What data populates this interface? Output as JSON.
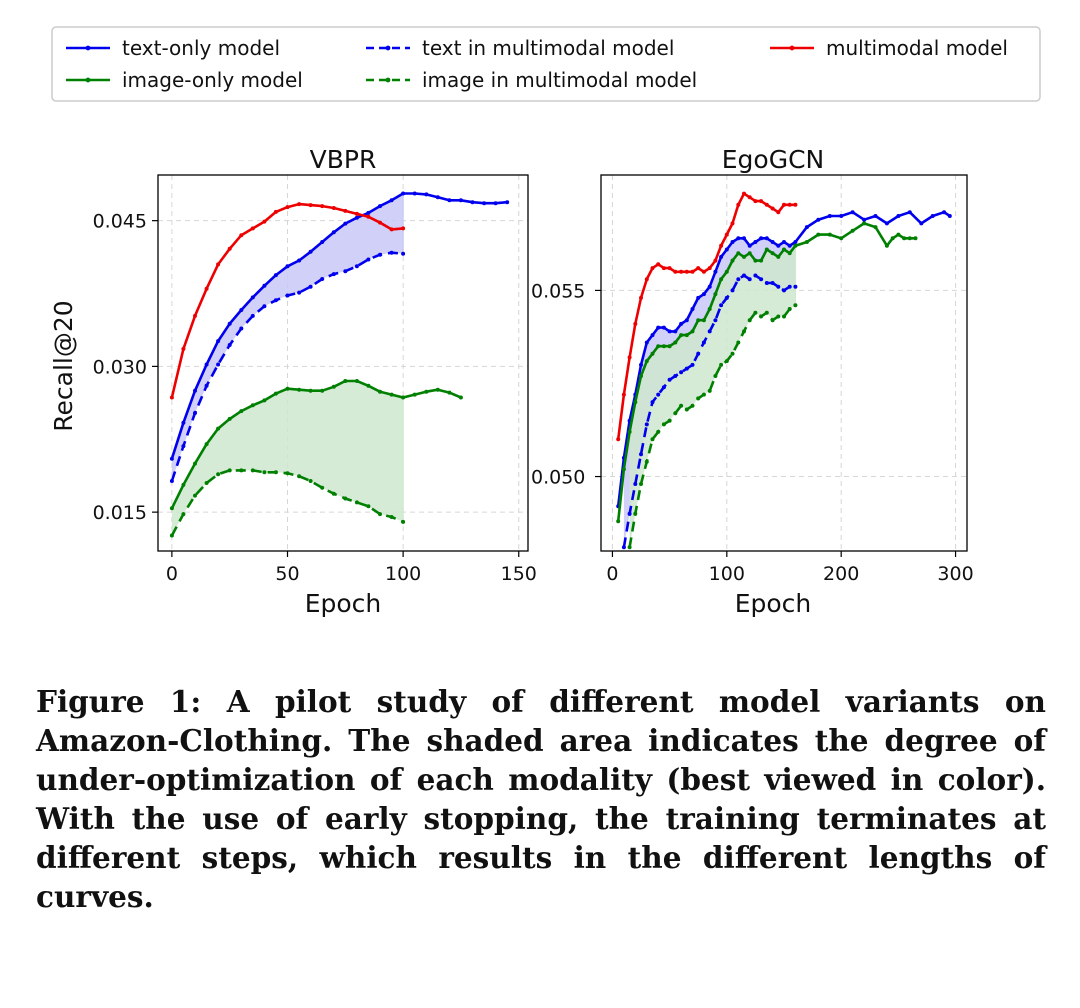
{
  "legend": {
    "entries": [
      {
        "label": "text-only model",
        "color": "#0000ee",
        "dash": false
      },
      {
        "label": "image-only model",
        "color": "#008000",
        "dash": false
      },
      {
        "label": "text in multimodal model",
        "color": "#0000ee",
        "dash": true
      },
      {
        "label": "image in multimodal model",
        "color": "#008000",
        "dash": true
      },
      {
        "label": "multimodal model",
        "color": "#ee0000",
        "dash": false
      }
    ]
  },
  "colors": {
    "text": "#0000ee",
    "image": "#008000",
    "multimodal": "#ee0000",
    "text_fill": "#c8c8f8",
    "image_fill": "#cfe8cf"
  },
  "chart_data": [
    {
      "type": "line",
      "title": "VBPR",
      "xlabel": "Epoch",
      "ylabel": "Recall@20",
      "xlim": [
        -6,
        154
      ],
      "ylim": [
        0.011,
        0.0497
      ],
      "xticks": [
        0,
        50,
        100,
        150
      ],
      "yticks": [
        0.015,
        0.03,
        0.045
      ],
      "ytick_labels": [
        "0.015",
        "0.030",
        "0.045"
      ],
      "grid": true,
      "shaded": [
        {
          "between": [
            "text-only model",
            "text in multimodal model"
          ],
          "until": 100,
          "color": "#c8c8f8"
        },
        {
          "between": [
            "image-only model",
            "image in multimodal model"
          ],
          "until": 100,
          "color": "#cfe8cf"
        }
      ],
      "series": [
        {
          "name": "text-only model",
          "color": "#0000ee",
          "dash": false,
          "x": [
            0,
            5,
            10,
            15,
            20,
            25,
            30,
            35,
            40,
            45,
            50,
            55,
            60,
            65,
            70,
            75,
            80,
            85,
            90,
            95,
            100,
            105,
            110,
            115,
            120,
            125,
            130,
            135,
            140,
            145
          ],
          "y": [
            0.0205,
            0.0242,
            0.0275,
            0.0302,
            0.0326,
            0.0344,
            0.0358,
            0.0371,
            0.0383,
            0.0394,
            0.0403,
            0.0409,
            0.0418,
            0.0428,
            0.0438,
            0.0447,
            0.0453,
            0.0458,
            0.0465,
            0.0471,
            0.0478,
            0.0478,
            0.0477,
            0.0474,
            0.0471,
            0.0471,
            0.0469,
            0.0468,
            0.0468,
            0.0469
          ]
        },
        {
          "name": "text in multimodal model",
          "color": "#0000ee",
          "dash": true,
          "x": [
            0,
            5,
            10,
            15,
            20,
            25,
            30,
            35,
            40,
            45,
            50,
            55,
            60,
            65,
            70,
            75,
            80,
            85,
            90,
            95,
            100
          ],
          "y": [
            0.0182,
            0.0218,
            0.0252,
            0.028,
            0.0302,
            0.0322,
            0.0339,
            0.0352,
            0.0362,
            0.0368,
            0.0373,
            0.0376,
            0.0382,
            0.039,
            0.0395,
            0.0398,
            0.0403,
            0.041,
            0.0415,
            0.0417,
            0.0416
          ]
        },
        {
          "name": "image-only model",
          "color": "#008000",
          "dash": false,
          "x": [
            0,
            5,
            10,
            15,
            20,
            25,
            30,
            35,
            40,
            45,
            50,
            55,
            60,
            65,
            70,
            75,
            80,
            85,
            90,
            95,
            100,
            105,
            110,
            115,
            120,
            125
          ],
          "y": [
            0.0154,
            0.0178,
            0.02,
            0.022,
            0.0236,
            0.0246,
            0.0254,
            0.026,
            0.0265,
            0.0272,
            0.0277,
            0.0276,
            0.0275,
            0.0275,
            0.0279,
            0.0285,
            0.0285,
            0.028,
            0.0274,
            0.0271,
            0.0268,
            0.0271,
            0.0274,
            0.0276,
            0.0273,
            0.0268
          ]
        },
        {
          "name": "image in multimodal model",
          "color": "#008000",
          "dash": true,
          "x": [
            0,
            5,
            10,
            15,
            20,
            25,
            30,
            35,
            40,
            45,
            50,
            55,
            60,
            65,
            70,
            75,
            80,
            85,
            90,
            95,
            100
          ],
          "y": [
            0.0126,
            0.0148,
            0.0167,
            0.018,
            0.0189,
            0.0193,
            0.0193,
            0.0193,
            0.0191,
            0.0191,
            0.019,
            0.0187,
            0.0182,
            0.0175,
            0.0169,
            0.0164,
            0.016,
            0.0156,
            0.0148,
            0.0145,
            0.014
          ]
        },
        {
          "name": "multimodal model",
          "color": "#ee0000",
          "dash": false,
          "x": [
            0,
            5,
            10,
            15,
            20,
            25,
            30,
            35,
            40,
            45,
            50,
            55,
            60,
            65,
            70,
            75,
            80,
            85,
            90,
            95,
            100
          ],
          "y": [
            0.0268,
            0.0318,
            0.0352,
            0.038,
            0.0405,
            0.0421,
            0.0435,
            0.0442,
            0.0449,
            0.0459,
            0.0464,
            0.0467,
            0.0466,
            0.0465,
            0.0463,
            0.046,
            0.0457,
            0.0454,
            0.0448,
            0.0441,
            0.0442
          ]
        }
      ]
    },
    {
      "type": "line",
      "title": "EgoGCN",
      "xlabel": "Epoch",
      "ylabel": "",
      "xlim": [
        -10,
        310
      ],
      "ylim": [
        0.048,
        0.0581
      ],
      "xticks": [
        0,
        100,
        200,
        300
      ],
      "yticks": [
        0.05,
        0.055
      ],
      "ytick_labels": [
        "0.050",
        "0.055"
      ],
      "grid": true,
      "shaded": [
        {
          "between": [
            "text-only model",
            "text in multimodal model"
          ],
          "until": 160,
          "color": "#c8c8f8"
        },
        {
          "between": [
            "image-only model",
            "image in multimodal model"
          ],
          "until": 160,
          "color": "#cfe8cf"
        }
      ],
      "series": [
        {
          "name": "text-only model",
          "color": "#0000ee",
          "dash": false,
          "x": [
            5,
            10,
            15,
            20,
            25,
            30,
            35,
            40,
            45,
            50,
            55,
            60,
            65,
            70,
            75,
            80,
            85,
            90,
            95,
            100,
            105,
            110,
            115,
            120,
            125,
            130,
            135,
            140,
            145,
            150,
            155,
            160,
            170,
            180,
            190,
            200,
            210,
            220,
            230,
            240,
            250,
            260,
            270,
            280,
            290,
            295
          ],
          "y": [
            0.0492,
            0.0505,
            0.0515,
            0.0522,
            0.053,
            0.0536,
            0.0538,
            0.054,
            0.054,
            0.0539,
            0.0539,
            0.0541,
            0.0542,
            0.0545,
            0.0548,
            0.0549,
            0.0551,
            0.0555,
            0.0559,
            0.0561,
            0.0563,
            0.0564,
            0.0564,
            0.0562,
            0.0563,
            0.0564,
            0.0564,
            0.0563,
            0.0562,
            0.0563,
            0.0562,
            0.0563,
            0.0567,
            0.0569,
            0.057,
            0.057,
            0.0571,
            0.0569,
            0.057,
            0.0568,
            0.057,
            0.0571,
            0.0568,
            0.057,
            0.0571,
            0.057
          ]
        },
        {
          "name": "text in multimodal model",
          "color": "#0000ee",
          "dash": true,
          "x": [
            10,
            15,
            20,
            25,
            30,
            35,
            40,
            45,
            50,
            55,
            60,
            65,
            70,
            75,
            80,
            85,
            90,
            95,
            100,
            105,
            110,
            115,
            120,
            125,
            130,
            135,
            140,
            145,
            150,
            155,
            160
          ],
          "y": [
            0.0481,
            0.049,
            0.0498,
            0.0506,
            0.0514,
            0.052,
            0.0522,
            0.0524,
            0.0526,
            0.0527,
            0.0528,
            0.0529,
            0.053,
            0.0533,
            0.0536,
            0.0539,
            0.0542,
            0.0546,
            0.0548,
            0.055,
            0.0553,
            0.0554,
            0.0553,
            0.0554,
            0.0553,
            0.0552,
            0.0552,
            0.0551,
            0.055,
            0.0551,
            0.0551
          ]
        },
        {
          "name": "image-only model",
          "color": "#008000",
          "dash": false,
          "x": [
            5,
            10,
            15,
            20,
            25,
            30,
            35,
            40,
            45,
            50,
            55,
            60,
            65,
            70,
            75,
            80,
            85,
            90,
            95,
            100,
            105,
            110,
            115,
            120,
            125,
            130,
            135,
            140,
            145,
            150,
            155,
            160,
            170,
            180,
            190,
            200,
            210,
            220,
            230,
            240,
            245,
            250,
            255,
            260,
            265
          ],
          "y": [
            0.0488,
            0.0502,
            0.0512,
            0.052,
            0.0527,
            0.0531,
            0.0533,
            0.0535,
            0.0535,
            0.0535,
            0.0536,
            0.0538,
            0.0538,
            0.0539,
            0.0542,
            0.0542,
            0.0545,
            0.0549,
            0.0553,
            0.0555,
            0.0558,
            0.056,
            0.0559,
            0.056,
            0.0558,
            0.0558,
            0.0561,
            0.056,
            0.0559,
            0.0561,
            0.056,
            0.0562,
            0.0563,
            0.0565,
            0.0565,
            0.0564,
            0.0566,
            0.0568,
            0.0567,
            0.0562,
            0.0564,
            0.0565,
            0.0564,
            0.0564,
            0.0564
          ]
        },
        {
          "name": "image in multimodal model",
          "color": "#008000",
          "dash": true,
          "x": [
            15,
            20,
            25,
            30,
            35,
            40,
            45,
            50,
            55,
            60,
            65,
            70,
            75,
            80,
            85,
            90,
            95,
            100,
            105,
            110,
            115,
            120,
            125,
            130,
            135,
            140,
            145,
            150,
            155,
            160
          ],
          "y": [
            0.0481,
            0.049,
            0.0498,
            0.0504,
            0.051,
            0.0512,
            0.0514,
            0.0515,
            0.0517,
            0.0519,
            0.0518,
            0.0519,
            0.0521,
            0.0522,
            0.0523,
            0.0527,
            0.053,
            0.0531,
            0.0533,
            0.0536,
            0.0539,
            0.0542,
            0.0544,
            0.0543,
            0.0544,
            0.0542,
            0.0543,
            0.0543,
            0.0545,
            0.0546
          ]
        },
        {
          "name": "multimodal model",
          "color": "#ee0000",
          "dash": false,
          "x": [
            5,
            10,
            15,
            20,
            25,
            30,
            35,
            40,
            45,
            50,
            55,
            60,
            65,
            70,
            75,
            80,
            85,
            90,
            95,
            100,
            105,
            110,
            115,
            120,
            125,
            130,
            135,
            140,
            145,
            150,
            155,
            160
          ],
          "y": [
            0.051,
            0.0522,
            0.0532,
            0.0541,
            0.0548,
            0.0553,
            0.0556,
            0.0557,
            0.0556,
            0.0556,
            0.0555,
            0.0555,
            0.0555,
            0.0555,
            0.0556,
            0.0555,
            0.0556,
            0.0558,
            0.0562,
            0.0565,
            0.0568,
            0.0573,
            0.0576,
            0.0575,
            0.0574,
            0.0574,
            0.0573,
            0.0572,
            0.0571,
            0.0573,
            0.0573,
            0.0573
          ]
        }
      ]
    }
  ],
  "caption": "Figure 1: A pilot study of different model variants on Amazon-Clothing. The shaded area indicates the degree of under-optimization of each modality (best viewed in color). With the use of early stopping, the training terminates at different steps, which results in the different lengths of curves."
}
